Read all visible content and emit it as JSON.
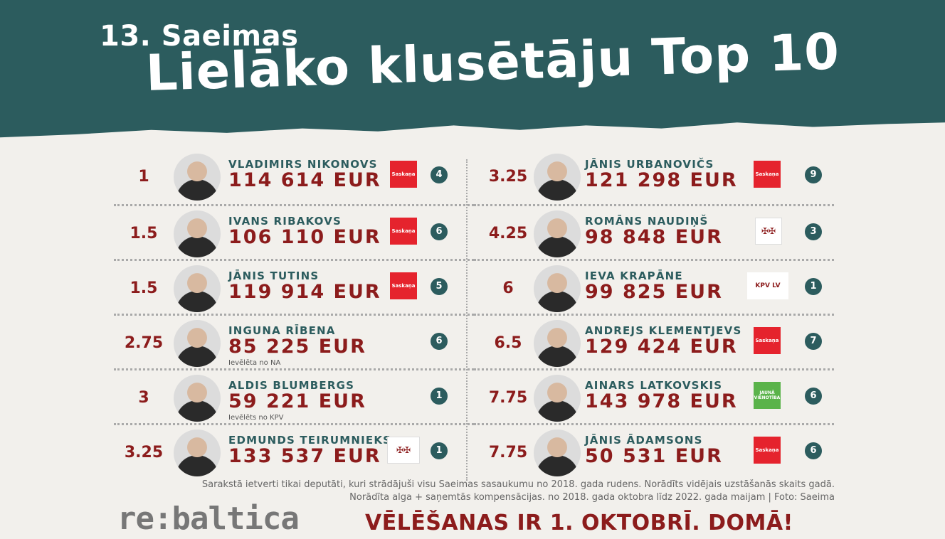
{
  "header": {
    "subtitle": "13. Saeimas",
    "title": "Lielāko klusētāju Top 10"
  },
  "left": [
    {
      "rank": "1",
      "name": "VLADIMIRS NIKONOVS",
      "amount": "114 614 EUR",
      "note": "",
      "party": "Saskaņa",
      "party_type": "saskana",
      "badge": "4"
    },
    {
      "rank": "1.5",
      "name": "IVANS RIBAKOVS",
      "amount": "106 110 EUR",
      "note": "",
      "party": "Saskaņa",
      "party_type": "saskana",
      "badge": "6"
    },
    {
      "rank": "1.5",
      "name": "JĀNIS TUTINS",
      "amount": "119 914 EUR",
      "note": "",
      "party": "Saskaņa",
      "party_type": "saskana",
      "badge": "5"
    },
    {
      "rank": "2.75",
      "name": "INGUNA RĪBENA",
      "amount": "85 225 EUR",
      "note": "Ievēlēta no NA",
      "party": "",
      "party_type": "none",
      "badge": "6"
    },
    {
      "rank": "3",
      "name": "ALDIS BLUMBERGS",
      "amount": "59 221 EUR",
      "note": "Ievēlēts no KPV",
      "party": "",
      "party_type": "none",
      "badge": "1"
    },
    {
      "rank": "3.25",
      "name": "EDMUNDS TEIRUMNIEKS",
      "amount": "133 537 EUR",
      "note": "",
      "party": "",
      "party_type": "na",
      "badge": "1"
    }
  ],
  "right": [
    {
      "rank": "3.25",
      "name": "JĀNIS URBANOVIČS",
      "amount": "121 298 EUR",
      "note": "",
      "party": "Saskaņa",
      "party_type": "saskana",
      "badge": "9"
    },
    {
      "rank": "4.25",
      "name": "ROMĀNS NAUDIŅŠ",
      "amount": "98 848 EUR",
      "note": "",
      "party": "",
      "party_type": "na",
      "badge": "3"
    },
    {
      "rank": "6",
      "name": "IEVA KRAPĀNE",
      "amount": "99 825 EUR",
      "note": "",
      "party": "KPV LV",
      "party_type": "kpv",
      "badge": "1"
    },
    {
      "rank": "6.5",
      "name": "ANDREJS KLEMENTJEVS",
      "amount": "129 424 EUR",
      "note": "",
      "party": "Saskaņa",
      "party_type": "saskana",
      "badge": "7"
    },
    {
      "rank": "7.75",
      "name": "AINARS LATKOVSKIS",
      "amount": "143 978 EUR",
      "note": "",
      "party": "JAUNĀ VIENOTĪBA",
      "party_type": "jv",
      "badge": "6"
    },
    {
      "rank": "7.75",
      "name": "JĀNIS ĀDAMSONS",
      "amount": "50 531 EUR",
      "note": "",
      "party": "Saskaņa",
      "party_type": "saskana",
      "badge": "6"
    }
  ],
  "footer": {
    "note1": "Sarakstā ietverti tikai deputāti, kuri strādājuši visu Saeimas sasaukumu no 2018. gada rudens. Norādīts vidējais uzstāšanās skaits gadā.",
    "note2": "Norādīta alga + saņemtās kompensācijas. no 2018. gada oktobra līdz 2022. gada maijam | Foto: Saeima",
    "logo": "re:baltica",
    "cta": "VĒLĒŠANAS IR 1. OKTOBRĪ. DOMĀ!"
  },
  "colors": {
    "teal": "#2c5c5e",
    "red": "#8c1c1c",
    "saskana": "#e5232d",
    "jv": "#5ab34a"
  }
}
